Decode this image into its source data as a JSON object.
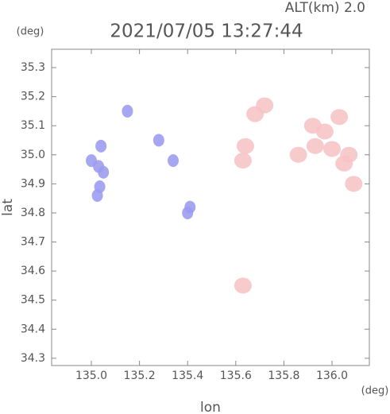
{
  "chart_data": {
    "type": "scatter",
    "title": "2021/07/05 13:27:44",
    "subtitle": "ALT(km)  2.0",
    "y_unit": "(deg)",
    "x_unit": "(deg)",
    "xlabel": "lon",
    "ylabel": "lat",
    "xlim": [
      134.835,
      136.155
    ],
    "ylim": [
      34.275,
      35.363
    ],
    "xticks": [
      {
        "value": 135.0,
        "label": "135.0"
      },
      135.2,
      135.4,
      135.6,
      135.8,
      {
        "value": 136.0,
        "label": "136.0"
      }
    ],
    "yticks": [
      34.3,
      34.4,
      34.5,
      34.6,
      34.7,
      34.8,
      34.9,
      {
        "value": 35.0,
        "label": "35.0"
      },
      35.1,
      35.2,
      35.3
    ],
    "series": [
      {
        "color": "#9c9cf0",
        "x": [
          135.0,
          135.03,
          135.05,
          135.04,
          135.035,
          135.025,
          135.28,
          135.34,
          135.4,
          135.41,
          135.15
        ],
        "values": [
          34.98,
          34.96,
          34.94,
          35.03,
          34.89,
          34.86,
          35.05,
          34.98,
          34.8,
          34.82,
          35.15
        ]
      },
      {
        "color": "#f6c4c6",
        "x": [
          135.63,
          135.64,
          135.68,
          135.72,
          135.86,
          135.92,
          135.97,
          136.03,
          136.0,
          136.07,
          135.93,
          136.05,
          136.09,
          135.63
        ],
        "values": [
          34.98,
          35.03,
          35.14,
          35.17,
          35.0,
          35.1,
          35.08,
          35.13,
          35.02,
          35.0,
          35.03,
          34.97,
          34.9,
          34.55
        ]
      }
    ]
  }
}
